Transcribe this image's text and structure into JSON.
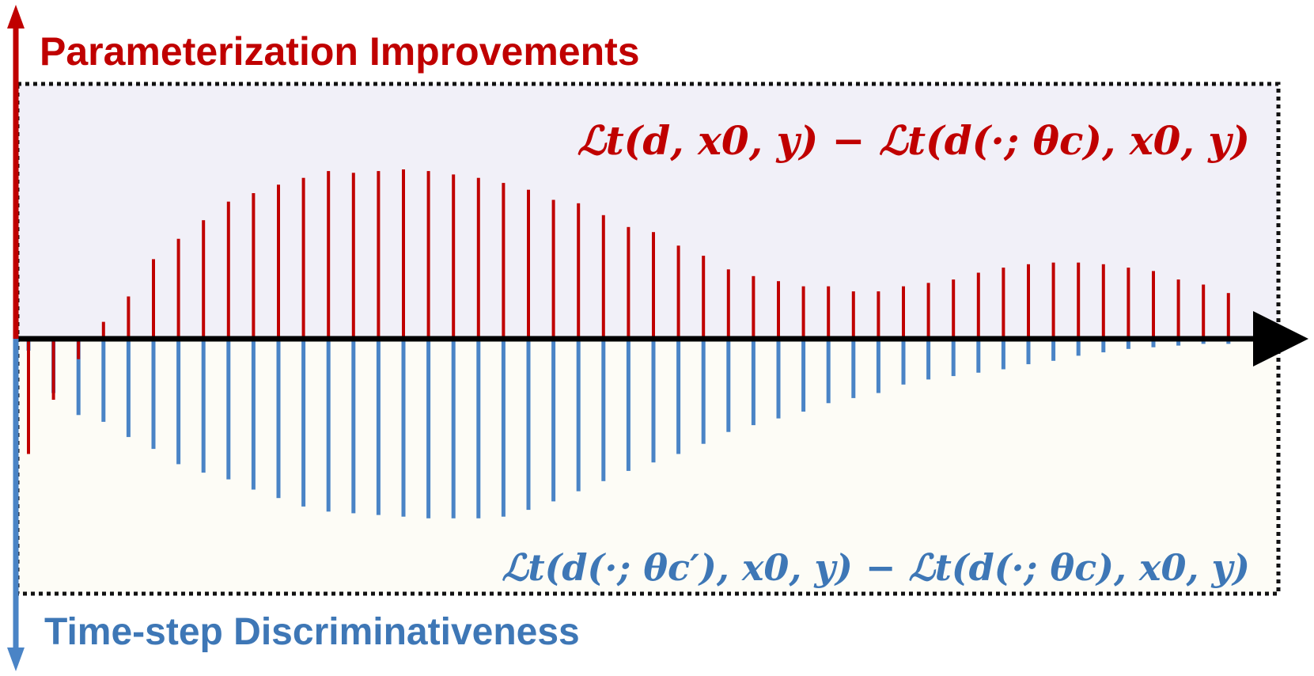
{
  "chart_data": {
    "type": "bar",
    "top_axis_label": "Parameterization Improvements",
    "bottom_axis_label": "Time-step Discriminativeness",
    "top_formula": "ℒt(d, x0, y) − ℒt(d(·; θc), x0, y)",
    "bottom_formula": "ℒt(d(·; θc′), x0, y) − ℒt(d(·; θc), x0, y)",
    "ylim": [
      -1.0,
      1.0
    ],
    "series": [
      {
        "name": "Parameterization Improvements",
        "color": "#c00000",
        "values": [
          -0.68,
          -0.36,
          -0.12,
          0.1,
          0.25,
          0.47,
          0.59,
          0.7,
          0.81,
          0.86,
          0.91,
          0.95,
          0.99,
          0.98,
          0.99,
          1.0,
          0.99,
          0.97,
          0.95,
          0.92,
          0.88,
          0.82,
          0.8,
          0.73,
          0.66,
          0.63,
          0.55,
          0.49,
          0.41,
          0.37,
          0.34,
          0.31,
          0.31,
          0.28,
          0.28,
          0.31,
          0.33,
          0.35,
          0.39,
          0.42,
          0.44,
          0.45,
          0.45,
          0.44,
          0.42,
          0.4,
          0.35,
          0.32,
          0.27
        ]
      },
      {
        "name": "Time-step Discriminativeness",
        "color": "#4a84c6",
        "values": [
          -0.07,
          -0.32,
          -0.45,
          -0.49,
          -0.58,
          -0.65,
          -0.74,
          -0.79,
          -0.83,
          -0.89,
          -0.94,
          -0.99,
          -1.02,
          -1.03,
          -1.04,
          -1.05,
          -1.06,
          -1.06,
          -1.06,
          -1.05,
          -1.01,
          -0.96,
          -0.9,
          -0.84,
          -0.78,
          -0.73,
          -0.68,
          -0.62,
          -0.55,
          -0.51,
          -0.47,
          -0.43,
          -0.38,
          -0.35,
          -0.32,
          -0.27,
          -0.24,
          -0.22,
          -0.2,
          -0.18,
          -0.15,
          -0.13,
          -0.1,
          -0.08,
          -0.06,
          -0.05,
          -0.04,
          -0.03,
          -0.03
        ]
      }
    ]
  }
}
